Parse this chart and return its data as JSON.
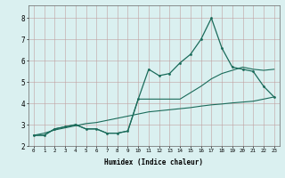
{
  "xlabel": "Humidex (Indice chaleur)",
  "x": [
    0,
    1,
    2,
    3,
    4,
    5,
    6,
    7,
    8,
    9,
    10,
    11,
    12,
    13,
    14,
    15,
    16,
    17,
    18,
    19,
    20,
    21,
    22,
    23
  ],
  "line1": [
    2.5,
    2.5,
    2.8,
    2.9,
    3.0,
    2.8,
    2.8,
    2.6,
    2.6,
    2.7,
    4.2,
    5.6,
    5.3,
    5.4,
    5.9,
    6.3,
    7.0,
    8.0,
    6.6,
    5.7,
    5.6,
    5.5,
    4.8,
    4.3
  ],
  "line2": [
    2.5,
    2.5,
    2.8,
    2.9,
    3.0,
    2.8,
    2.8,
    2.6,
    2.6,
    2.7,
    4.2,
    4.2,
    4.2,
    4.2,
    4.2,
    4.5,
    4.8,
    5.15,
    5.4,
    5.55,
    5.7,
    5.6,
    5.55,
    5.6
  ],
  "line3": [
    2.5,
    2.6,
    2.75,
    2.85,
    2.95,
    3.05,
    3.1,
    3.2,
    3.3,
    3.4,
    3.5,
    3.6,
    3.65,
    3.7,
    3.75,
    3.8,
    3.87,
    3.93,
    3.97,
    4.02,
    4.06,
    4.1,
    4.2,
    4.3
  ],
  "bg_color": "#daf0f0",
  "grid_color_major": "#c0a0a0",
  "line_color": "#1a6b5a",
  "ylim": [
    2.0,
    8.6
  ],
  "xlim": [
    -0.5,
    23.5
  ],
  "yticks": [
    2,
    3,
    4,
    5,
    6,
    7,
    8
  ],
  "xticks": [
    0,
    1,
    2,
    3,
    4,
    5,
    6,
    7,
    8,
    9,
    10,
    11,
    12,
    13,
    14,
    15,
    16,
    17,
    18,
    19,
    20,
    21,
    22,
    23
  ]
}
